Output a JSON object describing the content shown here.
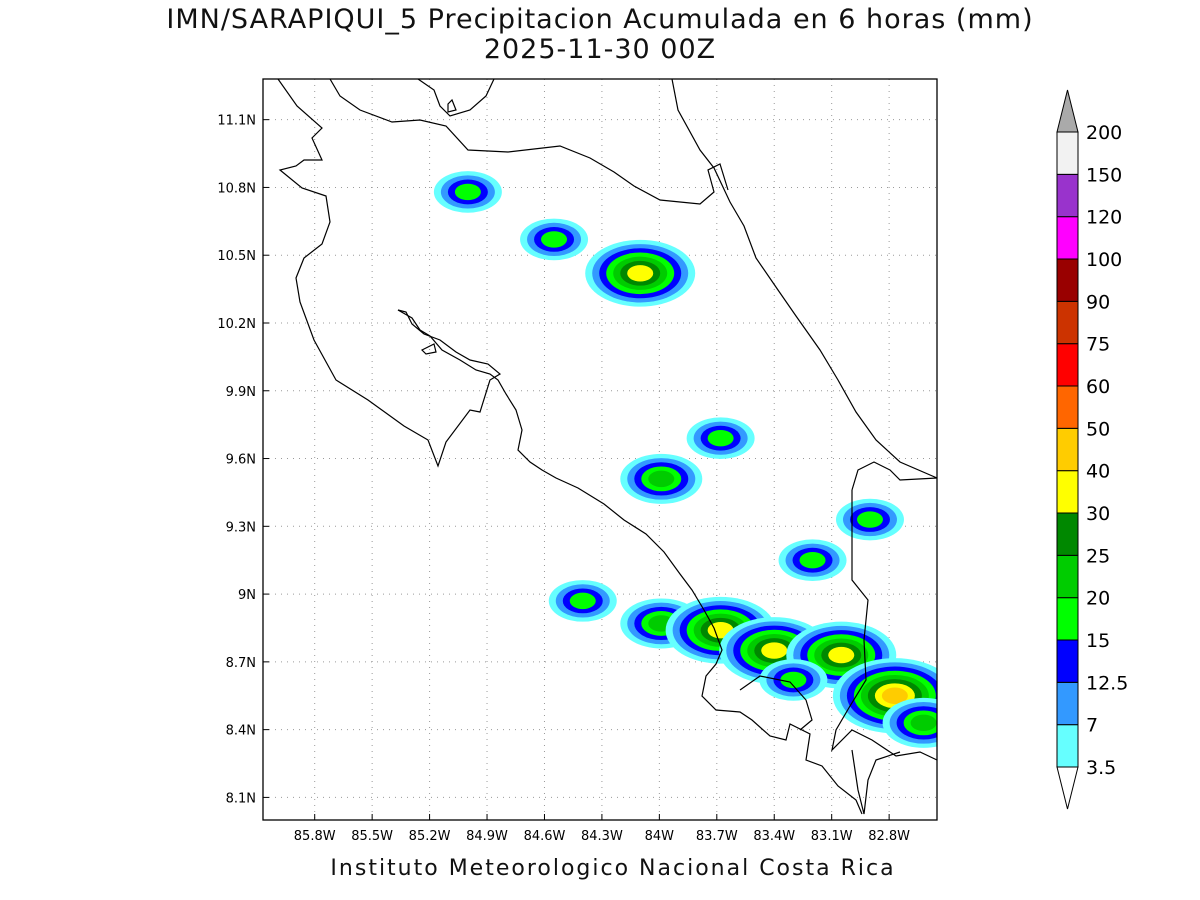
{
  "title_line1": "IMN/SARAPIQUI_5 Precipitacion Acumulada en 6 horas (mm)",
  "title_line2": "2025-11-30 00Z",
  "credit": "Instituto Meteorologico Nacional Costa Rica",
  "map": {
    "lon_range": [
      -86.07,
      -82.55
    ],
    "lat_range": [
      8.0,
      11.28
    ],
    "lon_ticks": [
      "85.8W",
      "85.5W",
      "85.2W",
      "84.9W",
      "84.6W",
      "84.3W",
      "84W",
      "83.7W",
      "83.4W",
      "83.1W",
      "82.8W"
    ],
    "lon_tick_values": [
      -85.8,
      -85.5,
      -85.2,
      -84.9,
      -84.6,
      -84.3,
      -84.0,
      -83.7,
      -83.4,
      -83.1,
      -82.8
    ],
    "lat_ticks": [
      "11.1N",
      "10.8N",
      "10.5N",
      "10.2N",
      "9.9N",
      "9.6N",
      "9.3N",
      "9N",
      "8.7N",
      "8.4N",
      "8.1N"
    ],
    "lat_tick_values": [
      11.1,
      10.8,
      10.5,
      10.2,
      9.9,
      9.6,
      9.3,
      9.0,
      8.7,
      8.4,
      8.1
    ],
    "grid": "dotted",
    "colorbar": {
      "levels": [
        "3.5",
        "7",
        "12.5",
        "15",
        "20",
        "25",
        "30",
        "40",
        "50",
        "60",
        "75",
        "90",
        "100",
        "120",
        "150",
        "200"
      ],
      "colors": [
        "#ffffff",
        "#66ffff",
        "#3399ff",
        "#0000ff",
        "#00ff00",
        "#00cc00",
        "#008800",
        "#ffff00",
        "#ffcc00",
        "#ff6600",
        "#ff0000",
        "#cc3300",
        "#990000",
        "#ff00ff",
        "#9933cc",
        "#f2f2f2",
        "#aaaaaa"
      ]
    },
    "precip_cells": [
      {
        "lon": -85.0,
        "lat": 10.78,
        "level": 4
      },
      {
        "lon": -84.55,
        "lat": 10.57,
        "level": 4
      },
      {
        "lon": -84.1,
        "lat": 10.42,
        "level": 7
      },
      {
        "lon": -83.99,
        "lat": 9.51,
        "level": 5
      },
      {
        "lon": -83.68,
        "lat": 9.69,
        "level": 4
      },
      {
        "lon": -83.99,
        "lat": 8.87,
        "level": 5
      },
      {
        "lon": -83.68,
        "lat": 8.84,
        "level": 7
      },
      {
        "lon": -83.4,
        "lat": 8.75,
        "level": 7
      },
      {
        "lon": -83.05,
        "lat": 8.73,
        "level": 7
      },
      {
        "lon": -82.77,
        "lat": 8.55,
        "level": 8
      },
      {
        "lon": -82.62,
        "lat": 8.43,
        "level": 5
      },
      {
        "lon": -83.3,
        "lat": 8.62,
        "level": 4
      },
      {
        "lon": -83.2,
        "lat": 9.15,
        "level": 4
      },
      {
        "lon": -82.9,
        "lat": 9.33,
        "level": 4
      },
      {
        "lon": -84.4,
        "lat": 8.97,
        "level": 4
      }
    ]
  }
}
